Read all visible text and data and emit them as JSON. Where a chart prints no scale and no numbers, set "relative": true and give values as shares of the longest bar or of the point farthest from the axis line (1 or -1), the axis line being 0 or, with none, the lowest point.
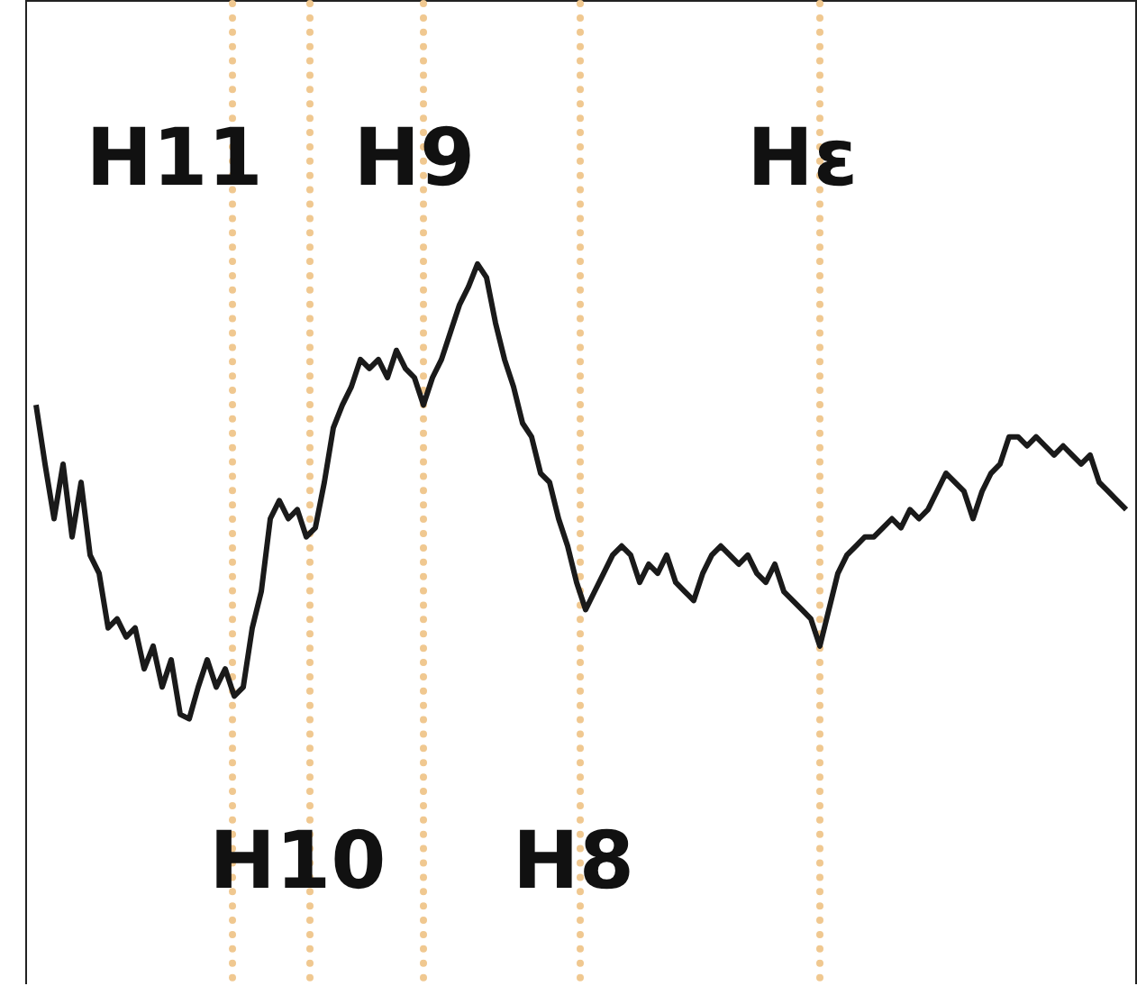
{
  "chart_data": {
    "type": "line",
    "relative": true,
    "legend": false,
    "marker": "none",
    "line_style": "solid",
    "categories": [
      null,
      null,
      null,
      null,
      null,
      null,
      null,
      null,
      null,
      null,
      null,
      null,
      null,
      null,
      null,
      null,
      null,
      null,
      null,
      null,
      null,
      null,
      null,
      null,
      null,
      null,
      null,
      null,
      null,
      null,
      null,
      null,
      null,
      null,
      null,
      null,
      null,
      null,
      null,
      null,
      null,
      null,
      null,
      null,
      null,
      null,
      null,
      null,
      null,
      null,
      null,
      null,
      null,
      null,
      null,
      null,
      null,
      null,
      null,
      null,
      null,
      null,
      null,
      null,
      null,
      null,
      null,
      null,
      null,
      null,
      null,
      null,
      null,
      null,
      null,
      null,
      null,
      null,
      null,
      null,
      null,
      null,
      null,
      null,
      null,
      null,
      null,
      null,
      null,
      null,
      null,
      null,
      null,
      null,
      null,
      null,
      null,
      null,
      null,
      null,
      null,
      null,
      null,
      null,
      null,
      null,
      null,
      null,
      null,
      null,
      null,
      null,
      null,
      null,
      null,
      null,
      null,
      null,
      null,
      null,
      null,
      null
    ],
    "series": [
      {
        "color": "#1a1a1a",
        "values": [
          0.69,
          0.56,
          0.44,
          0.56,
          0.4,
          0.52,
          0.36,
          0.32,
          0.2,
          0.22,
          0.18,
          0.2,
          0.11,
          0.16,
          0.07,
          0.13,
          0.01,
          0,
          0.07,
          0.13,
          0.07,
          0.11,
          0.05,
          0.07,
          0.2,
          0.28,
          0.44,
          0.48,
          0.44,
          0.46,
          0.4,
          0.42,
          0.52,
          0.64,
          0.69,
          0.73,
          0.79,
          0.77,
          0.79,
          0.75,
          0.81,
          0.77,
          0.75,
          0.69,
          0.75,
          0.79,
          0.85,
          0.91,
          0.95,
          1,
          0.97,
          0.87,
          0.79,
          0.73,
          0.65,
          0.62,
          0.54,
          0.52,
          0.44,
          0.38,
          0.3,
          0.24,
          0.28,
          0.32,
          0.36,
          0.38,
          0.36,
          0.3,
          0.34,
          0.32,
          0.36,
          0.3,
          0.28,
          0.26,
          0.32,
          0.36,
          0.38,
          0.36,
          0.34,
          0.36,
          0.32,
          0.3,
          0.34,
          0.28,
          0.26,
          0.24,
          0.22,
          0.16,
          0.24,
          0.32,
          0.36,
          0.38,
          0.4,
          0.4,
          0.42,
          0.44,
          0.42,
          0.46,
          0.44,
          0.46,
          0.5,
          0.54,
          0.52,
          0.5,
          0.44,
          0.5,
          0.54,
          0.56,
          0.62,
          0.62,
          0.6,
          0.62,
          0.6,
          0.58,
          0.6,
          0.58,
          0.56,
          0.58,
          0.52,
          0.5,
          0.48,
          0.46
        ]
      }
    ],
    "annotations": [
      "H11",
      "H10",
      "H9",
      "H8",
      "Hε"
    ]
  }
}
